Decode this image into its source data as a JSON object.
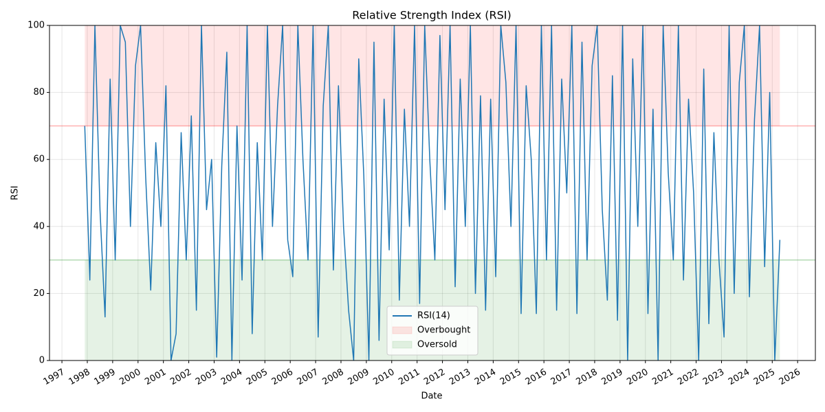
{
  "chart_data": {
    "type": "line",
    "title": "Relative Strength Index (RSI)",
    "x_label": "Date",
    "y_label": "RSI",
    "x": [
      1997.9,
      1998.1,
      1998.3,
      1998.5,
      1998.7,
      1998.9,
      1999.1,
      1999.3,
      1999.5,
      1999.7,
      1999.9,
      2000.1,
      2000.3,
      2000.5,
      2000.7,
      2000.9,
      2001.1,
      2001.3,
      2001.5,
      2001.7,
      2001.9,
      2002.1,
      2002.3,
      2002.5,
      2002.7,
      2002.9,
      2003.1,
      2003.3,
      2003.5,
      2003.7,
      2003.9,
      2004.1,
      2004.3,
      2004.5,
      2004.7,
      2004.9,
      2005.1,
      2005.3,
      2005.5,
      2005.7,
      2005.9,
      2006.1,
      2006.3,
      2006.5,
      2006.7,
      2006.9,
      2007.1,
      2007.3,
      2007.5,
      2007.7,
      2007.9,
      2008.1,
      2008.3,
      2008.5,
      2008.7,
      2008.9,
      2009.1,
      2009.3,
      2009.5,
      2009.7,
      2009.9,
      2010.1,
      2010.3,
      2010.5,
      2010.7,
      2010.9,
      2011.1,
      2011.3,
      2011.5,
      2011.7,
      2011.9,
      2012.1,
      2012.3,
      2012.5,
      2012.7,
      2012.9,
      2013.1,
      2013.3,
      2013.5,
      2013.7,
      2013.9,
      2014.1,
      2014.3,
      2014.5,
      2014.7,
      2014.9,
      2015.1,
      2015.3,
      2015.5,
      2015.7,
      2015.9,
      2016.1,
      2016.3,
      2016.5,
      2016.7,
      2016.9,
      2017.1,
      2017.3,
      2017.5,
      2017.7,
      2017.9,
      2018.1,
      2018.3,
      2018.5,
      2018.7,
      2018.9,
      2019.1,
      2019.3,
      2019.5,
      2019.7,
      2019.9,
      2020.1,
      2020.3,
      2020.5,
      2020.7,
      2020.9,
      2021.1,
      2021.3,
      2021.5,
      2021.7,
      2021.9,
      2022.1,
      2022.3,
      2022.5,
      2022.7,
      2022.9,
      2023.1,
      2023.3,
      2023.5,
      2023.7,
      2023.9,
      2024.1,
      2024.3,
      2024.5,
      2024.7,
      2024.9,
      2025.1,
      2025.3
    ],
    "series": [
      {
        "name": "RSI(14)",
        "color": "#1f77b4",
        "values": [
          70,
          24,
          100,
          45,
          13,
          84,
          30,
          100,
          95,
          40,
          88,
          100,
          55,
          21,
          65,
          40,
          82,
          0,
          8,
          68,
          30,
          73,
          15,
          100,
          45,
          60,
          1,
          58,
          92,
          0,
          70,
          24,
          100,
          8,
          65,
          30,
          100,
          40,
          76,
          100,
          36,
          25,
          100,
          60,
          30,
          100,
          7,
          76,
          100,
          27,
          82,
          40,
          15,
          0,
          90,
          55,
          0,
          95,
          6,
          78,
          33,
          100,
          18,
          75,
          40,
          100,
          17,
          100,
          60,
          30,
          97,
          45,
          100,
          22,
          84,
          40,
          100,
          20,
          79,
          15,
          78,
          25,
          100,
          83,
          40,
          100,
          14,
          82,
          60,
          14,
          100,
          30,
          100,
          15,
          84,
          50,
          100,
          14,
          95,
          30,
          88,
          100,
          45,
          18,
          85,
          12,
          100,
          0,
          90,
          40,
          100,
          14,
          75,
          0,
          100,
          56,
          30,
          100,
          24,
          78,
          50,
          0,
          87,
          11,
          68,
          30,
          7,
          100,
          20,
          83,
          100,
          19,
          72,
          100,
          28,
          80,
          0,
          36
        ]
      }
    ],
    "bands": [
      {
        "name": "Overbought",
        "value": 70,
        "bound": 100,
        "color": "#ff0000"
      },
      {
        "name": "Oversold",
        "value": 30,
        "bound": 0,
        "color": "#008000"
      }
    ],
    "xlim": [
      1996.51,
      2026.7
    ],
    "xticks": [
      1997,
      1998,
      1999,
      2000,
      2001,
      2002,
      2003,
      2004,
      2005,
      2006,
      2007,
      2008,
      2009,
      2010,
      2011,
      2012,
      2013,
      2014,
      2015,
      2016,
      2017,
      2018,
      2019,
      2020,
      2021,
      2022,
      2023,
      2024,
      2025,
      2026
    ],
    "ylim": [
      0,
      100
    ],
    "yticks": [
      0,
      20,
      40,
      60,
      80,
      100
    ],
    "grid": true,
    "legend": "lower center"
  }
}
